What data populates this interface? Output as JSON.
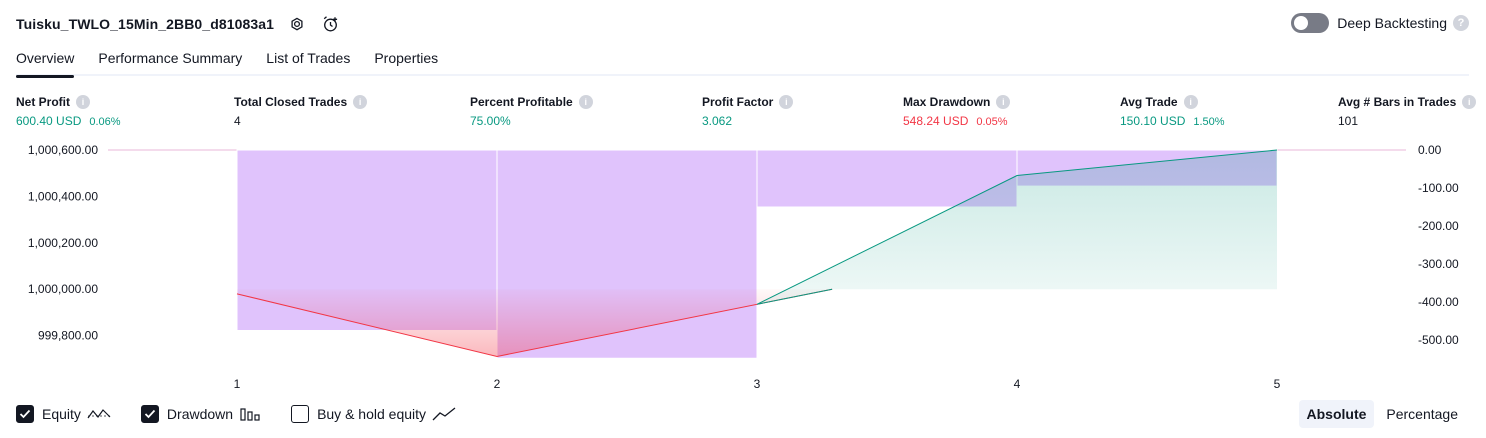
{
  "header": {
    "title": "Tuisku_TWLO_15Min_2BB0_d81083a1",
    "settings_icon": "gear-icon",
    "alert_icon": "add-alert-icon"
  },
  "deep_backtesting": {
    "label": "Deep Backtesting",
    "enabled": false,
    "help": "?"
  },
  "tabs": [
    {
      "label": "Overview",
      "active": true
    },
    {
      "label": "Performance Summary",
      "active": false
    },
    {
      "label": "List of Trades",
      "active": false
    },
    {
      "label": "Properties",
      "active": false
    }
  ],
  "metrics": {
    "net_profit": {
      "label": "Net Profit",
      "value": "600.40 USD",
      "sub": "0.06%"
    },
    "total_closed_trades": {
      "label": "Total Closed Trades",
      "value": "4"
    },
    "percent_profitable": {
      "label": "Percent Profitable",
      "value": "75.00%"
    },
    "profit_factor": {
      "label": "Profit Factor",
      "value": "3.062"
    },
    "max_drawdown": {
      "label": "Max Drawdown",
      "value": "548.24 USD",
      "sub": "0.05%"
    },
    "avg_trade": {
      "label": "Avg Trade",
      "value": "150.10 USD",
      "sub": "1.50%"
    },
    "avg_bars": {
      "label": "Avg # Bars in Trades",
      "value": "101"
    }
  },
  "colors": {
    "equity_positive": "#089981",
    "equity_negative": "#f23645",
    "drawdown_bar": "#e0c3fc",
    "label": "#131722"
  },
  "chart_data": {
    "type": "area",
    "x": [
      1,
      2,
      3,
      4,
      5
    ],
    "x_tick_labels": [
      "1",
      "2",
      "3",
      "4",
      "5"
    ],
    "equity": [
      999980,
      999710,
      999935,
      1000490,
      1000600
    ],
    "drawdown": [
      -475,
      -548,
      -150,
      -95
    ],
    "drawdown_x": [
      1.5,
      2.5,
      3.5,
      4.5
    ],
    "left_axis": {
      "ticks": [
        1000600,
        1000400,
        1000200,
        1000000,
        999800
      ],
      "tick_labels": [
        "1,000,600.00",
        "1,000,400.00",
        "1,000,200.00",
        "1,000,000.00",
        "999,800.00"
      ]
    },
    "right_axis": {
      "ticks": [
        0,
        -100,
        -200,
        -300,
        -400,
        -500
      ],
      "tick_labels": [
        "0.00",
        "-100.00",
        "-200.00",
        "-300.00",
        "-400.00",
        "-500.00"
      ]
    }
  },
  "legend": [
    {
      "label": "Equity",
      "checked": true,
      "icon": "equity-line-icon"
    },
    {
      "label": "Drawdown",
      "checked": true,
      "icon": "drawdown-bars-icon"
    },
    {
      "label": "Buy & hold equity",
      "checked": false,
      "icon": "buy-hold-line-icon"
    }
  ],
  "scale_mode": {
    "options": [
      "Absolute",
      "Percentage"
    ],
    "selected": "Absolute"
  }
}
